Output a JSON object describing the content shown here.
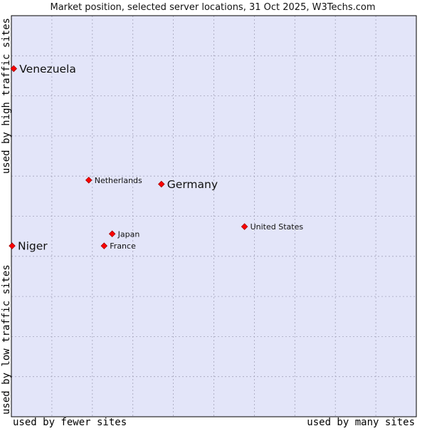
{
  "chart_data": {
    "type": "scatter",
    "title": "Market position, selected server locations, 31 Oct 2025, W3Techs.com",
    "xlabel_left": "used by fewer sites",
    "xlabel_right": "used by many sites",
    "ylabel_bottom": "used by low traffic sites",
    "ylabel_top": "used by high traffic sites",
    "xlim": [
      0,
      100
    ],
    "ylim": [
      0,
      100
    ],
    "grid": true,
    "points": [
      {
        "name": "Venezuela",
        "x": 0.4,
        "y": 86.8,
        "size": "large"
      },
      {
        "name": "Netherlands",
        "x": 19.0,
        "y": 59.0,
        "size": "small"
      },
      {
        "name": "Germany",
        "x": 37.0,
        "y": 58.0,
        "size": "large"
      },
      {
        "name": "United States",
        "x": 57.6,
        "y": 47.4,
        "size": "small"
      },
      {
        "name": "Japan",
        "x": 24.8,
        "y": 45.6,
        "size": "small"
      },
      {
        "name": "France",
        "x": 22.8,
        "y": 42.6,
        "size": "small"
      },
      {
        "name": "Niger",
        "x": 0.0,
        "y": 42.6,
        "size": "large"
      }
    ]
  },
  "colors": {
    "plot_background": "#e3e5f9",
    "grid": "#a3a3ba",
    "marker_fill": "#ff0000",
    "marker_stroke": "#a00000",
    "border": "#000000"
  }
}
